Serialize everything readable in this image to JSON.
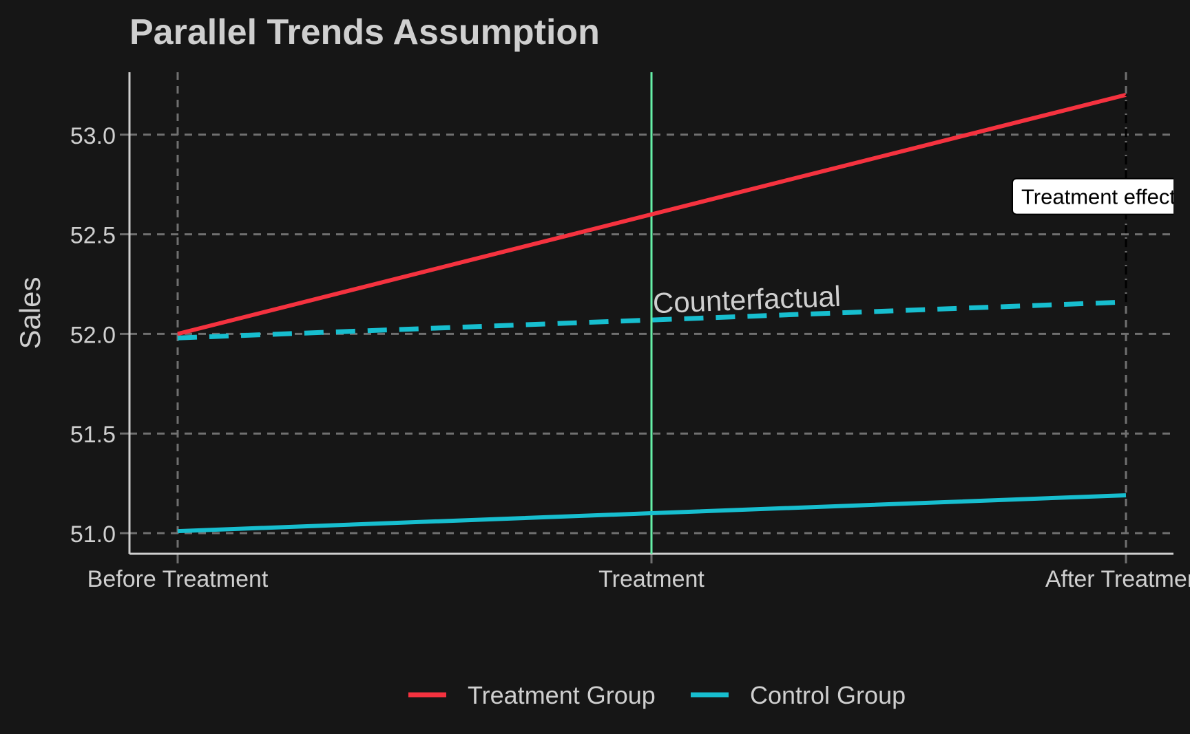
{
  "chart_data": {
    "type": "line",
    "title": "Parallel Trends Assumption",
    "xlabel": "",
    "ylabel": "Sales",
    "categories": [
      "Before Treatment",
      "Treatment",
      "After Treatment"
    ],
    "ylim": [
      50.9,
      53.3
    ],
    "yticks": [
      51.0,
      51.5,
      52.0,
      52.5,
      53.0
    ],
    "ytick_labels": [
      "51.0",
      "51.5",
      "52.0",
      "52.5",
      "53.0"
    ],
    "grid": true,
    "legend_position": "bottom",
    "series": [
      {
        "name": "Treatment Group",
        "values": [
          52.0,
          52.6,
          53.2
        ],
        "color": "#F5323F",
        "style": "solid"
      },
      {
        "name": "Control Group",
        "values": [
          51.01,
          51.1,
          51.19
        ],
        "color": "#17BECF",
        "style": "solid"
      }
    ],
    "counterfactual": {
      "label": "Counterfactual",
      "values": [
        51.98,
        52.07,
        52.16
      ],
      "color": "#17BECF",
      "style": "dashed"
    },
    "treatment_marker": {
      "category": "Treatment",
      "color": "#66F0A8"
    },
    "effect_annotation": {
      "label": "Treatment effect",
      "category": "After Treatment",
      "from": 52.16,
      "to": 53.2,
      "label_value": 52.69
    },
    "colors": {
      "background": "#161616",
      "text": "#CFCFCF",
      "grid": "#707070",
      "axis": "#CFCFCF"
    }
  }
}
